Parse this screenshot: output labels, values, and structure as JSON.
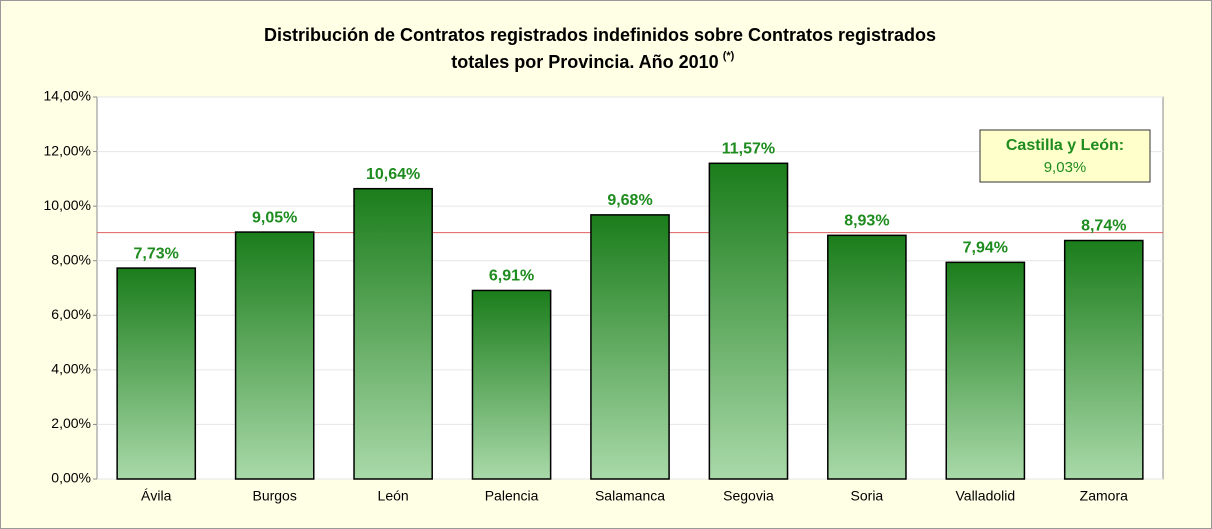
{
  "chart_data": {
    "type": "bar",
    "title": [
      "Distribución de Contratos registrados indefinidos sobre Contratos registrados",
      "totales por Provincia. Año 2010"
    ],
    "title_note": "(*)",
    "categories": [
      "Ávila",
      "Burgos",
      "León",
      "Palencia",
      "Salamanca",
      "Segovia",
      "Soria",
      "Valladolid",
      "Zamora"
    ],
    "values": [
      7.73,
      9.05,
      10.64,
      6.91,
      9.68,
      11.57,
      8.93,
      7.94,
      8.74
    ],
    "value_labels": [
      "7,73%",
      "9,05%",
      "10,64%",
      "6,91%",
      "9,68%",
      "11,57%",
      "8,93%",
      "7,94%",
      "8,74%"
    ],
    "color": "#1b7d1b",
    "color_light": "#a9d9a9",
    "ylim": [
      0,
      14
    ],
    "yticks": [
      {
        "value": 0,
        "label": "0,00%"
      },
      {
        "value": 2,
        "label": "2,00%"
      },
      {
        "value": 4,
        "label": "4,00%"
      },
      {
        "value": 6,
        "label": "6,00%"
      },
      {
        "value": 8,
        "label": "8,00%"
      },
      {
        "value": 10,
        "label": "10,00%"
      },
      {
        "value": 12,
        "label": "12,00%"
      },
      {
        "value": 14,
        "label": "14,00%"
      }
    ],
    "grid": true,
    "reference": {
      "label": "Castilla y León:",
      "value": 9.03,
      "value_label": "9,03%",
      "color": "#e06060"
    }
  }
}
